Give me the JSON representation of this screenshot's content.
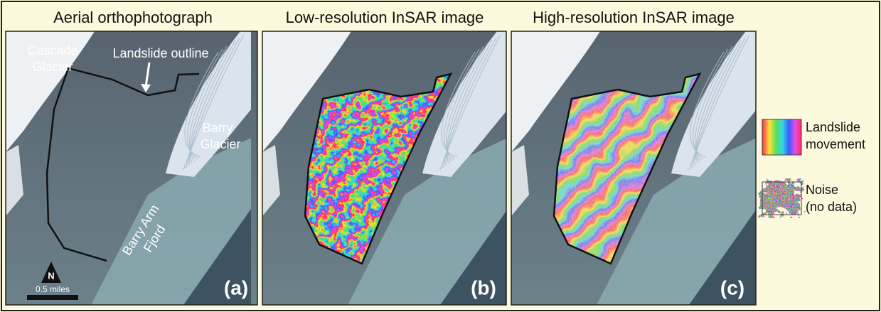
{
  "panels": [
    {
      "title": "Aerial orthophotograph",
      "label": "(a)",
      "annotations": {
        "cascade": [
          "Cascade",
          "Glacier"
        ],
        "outline": "Landslide outline",
        "barry": [
          "Barry",
          "Glacier"
        ],
        "fjord": [
          "Barry Arm",
          "Fjord"
        ]
      },
      "north": "N",
      "scale": "0.5 miles"
    },
    {
      "title": "Low-resolution InSAR image",
      "label": "(b)"
    },
    {
      "title": "High-resolution InSAR image",
      "label": "(c)"
    }
  ],
  "legend": [
    {
      "label": [
        "Landslide",
        "movement"
      ]
    },
    {
      "label": [
        "Noise",
        "(no data)"
      ]
    }
  ]
}
